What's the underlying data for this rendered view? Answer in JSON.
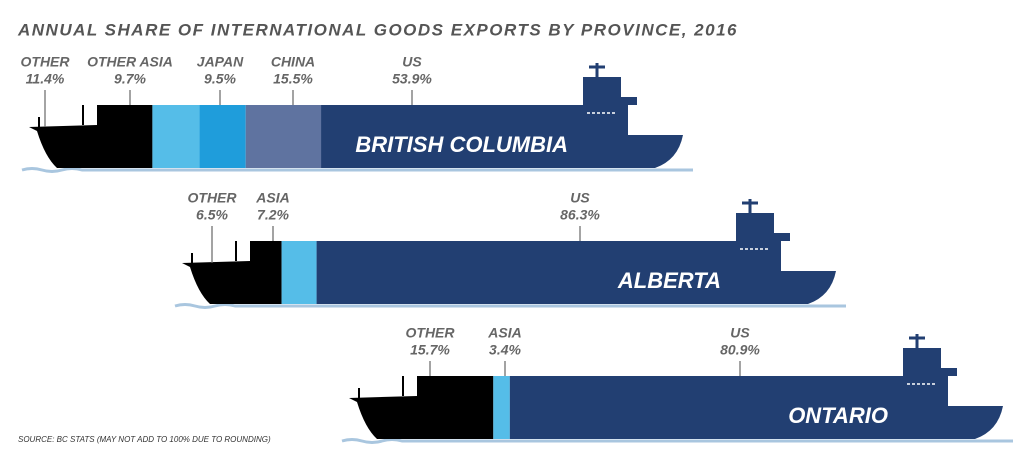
{
  "title": "ANNUAL SHARE OF INTERNATIONAL GOODS EXPORTS BY PROVINCE, 2016",
  "source": "SOURCE: BC STATS (MAY NOT ADD TO 100% DUE TO ROUNDING)",
  "chart_data": [
    {
      "type": "stacked_bar",
      "title": "BRITISH COLUMBIA",
      "series": [
        {
          "name": "OTHER",
          "color": "#000000",
          "values": [
            11.4
          ],
          "value_labels": [
            "11.4%"
          ]
        },
        {
          "name": "OTHER ASIA",
          "color": "#55bde8",
          "values": [
            9.7
          ],
          "value_labels": [
            "9.7%"
          ]
        },
        {
          "name": "JAPAN",
          "color": "#1f9ddb",
          "values": [
            9.5
          ],
          "value_labels": [
            "9.5%"
          ]
        },
        {
          "name": "CHINA",
          "color": "#5f73a0",
          "values": [
            15.5
          ],
          "value_labels": [
            "15.5%"
          ]
        },
        {
          "name": "US",
          "color": "#223f72",
          "values": [
            53.9
          ],
          "value_labels": [
            "53.9%"
          ]
        }
      ]
    },
    {
      "type": "stacked_bar",
      "title": "ALBERTA",
      "series": [
        {
          "name": "OTHER",
          "color": "#000000",
          "values": [
            6.5
          ],
          "value_labels": [
            "6.5%"
          ]
        },
        {
          "name": "ASIA",
          "color": "#55bde8",
          "values": [
            7.2
          ],
          "value_labels": [
            "7.2%"
          ]
        },
        {
          "name": "US",
          "color": "#223f72",
          "values": [
            86.3
          ],
          "value_labels": [
            "86.3%"
          ]
        }
      ]
    },
    {
      "type": "stacked_bar",
      "title": "ONTARIO",
      "series": [
        {
          "name": "OTHER",
          "color": "#000000",
          "values": [
            15.7
          ],
          "value_labels": [
            "15.7%"
          ]
        },
        {
          "name": "ASIA",
          "color": "#55bde8",
          "values": [
            3.4
          ],
          "value_labels": [
            "3.4%"
          ]
        },
        {
          "name": "US",
          "color": "#223f72",
          "values": [
            80.9
          ],
          "value_labels": [
            "80.9%"
          ]
        }
      ]
    }
  ]
}
